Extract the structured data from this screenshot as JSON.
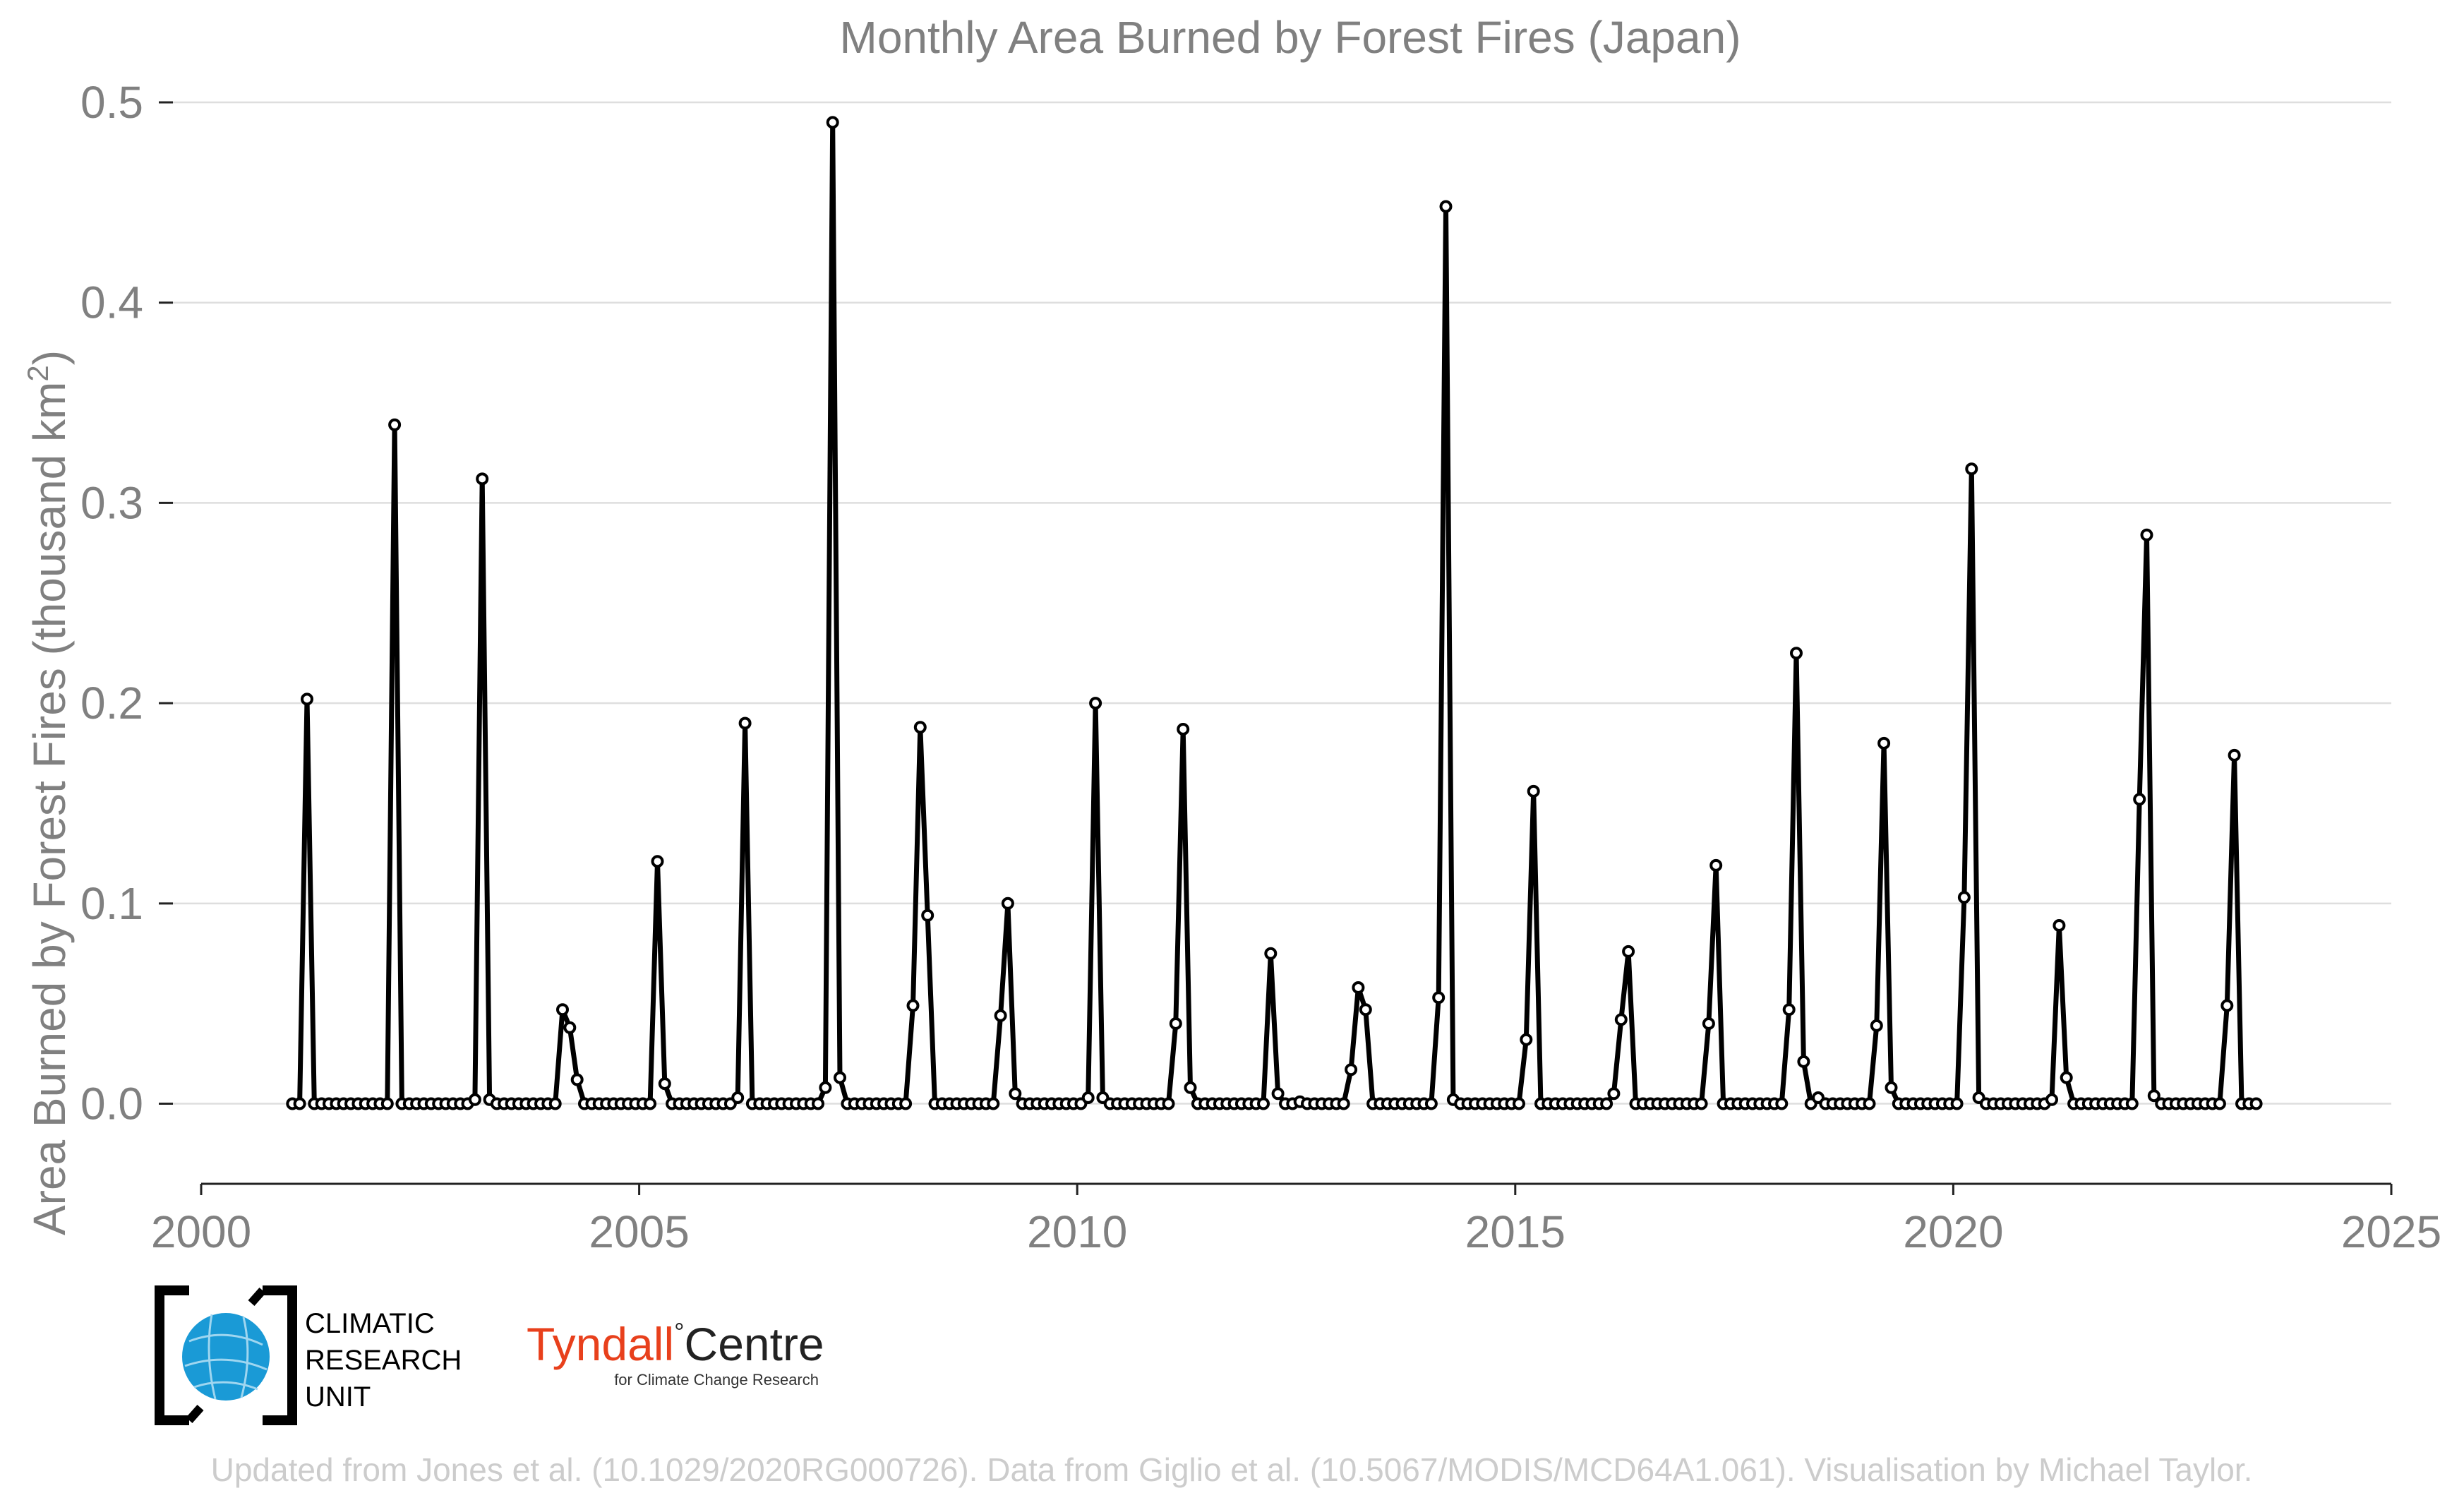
{
  "chart_data": {
    "type": "line",
    "title": "Monthly Area Burned by Forest Fires (Japan)",
    "ylabel": "Area Burned by Forest Fires (thousand km",
    "ylabel_superscript": "2",
    "ylabel_close": ")",
    "xlabel": "",
    "xlim": [
      2000,
      2025
    ],
    "ylim": [
      -0.04,
      0.5
    ],
    "x_ticks": [
      2000,
      2005,
      2010,
      2015,
      2020,
      2025
    ],
    "x_tick_labels": [
      "2000",
      "2005",
      "2010",
      "2015",
      "2020",
      "2025"
    ],
    "y_ticks": [
      0.0,
      0.1,
      0.2,
      0.3,
      0.4,
      0.5
    ],
    "y_tick_labels": [
      "0.0",
      "0.1",
      "0.2",
      "0.3",
      "0.4",
      "0.5"
    ],
    "grid": "horizontal",
    "start": "2001-01",
    "end": "2023-06",
    "frequency": "monthly",
    "series": [
      {
        "values": [
          0.0,
          0.0,
          0.202,
          0.0,
          0.0,
          0.0,
          0.0,
          0.0,
          0.0,
          0.0,
          0.0,
          0.0,
          0.0,
          0.0,
          0.339,
          0.0,
          0.0,
          0.0,
          0.0,
          0.0,
          0.0,
          0.0,
          0.0,
          0.0,
          0.0,
          0.002,
          0.312,
          0.002,
          0.0,
          0.0,
          0.0,
          0.0,
          0.0,
          0.0,
          0.0,
          0.0,
          0.0,
          0.047,
          0.038,
          0.012,
          0.0,
          0.0,
          0.0,
          0.0,
          0.0,
          0.0,
          0.0,
          0.0,
          0.0,
          0.0,
          0.121,
          0.01,
          0.0,
          0.0,
          0.0,
          0.0,
          0.0,
          0.0,
          0.0,
          0.0,
          0.0,
          0.003,
          0.19,
          0.0,
          0.0,
          0.0,
          0.0,
          0.0,
          0.0,
          0.0,
          0.0,
          0.0,
          0.0,
          0.008,
          0.49,
          0.013,
          0.0,
          0.0,
          0.0,
          0.0,
          0.0,
          0.0,
          0.0,
          0.0,
          0.0,
          0.049,
          0.188,
          0.094,
          0.0,
          0.0,
          0.0,
          0.0,
          0.0,
          0.0,
          0.0,
          0.0,
          0.0,
          0.044,
          0.1,
          0.005,
          0.0,
          0.0,
          0.0,
          0.0,
          0.0,
          0.0,
          0.0,
          0.0,
          0.0,
          0.003,
          0.2,
          0.003,
          0.0,
          0.0,
          0.0,
          0.0,
          0.0,
          0.0,
          0.0,
          0.0,
          0.0,
          0.04,
          0.187,
          0.008,
          0.0,
          0.0,
          0.0,
          0.0,
          0.0,
          0.0,
          0.0,
          0.0,
          0.0,
          0.0,
          0.075,
          0.005,
          0.0,
          0.0,
          0.001,
          0.0,
          0.0,
          0.0,
          0.0,
          0.0,
          0.0,
          0.017,
          0.058,
          0.047,
          0.0,
          0.0,
          0.0,
          0.0,
          0.0,
          0.0,
          0.0,
          0.0,
          0.0,
          0.053,
          0.448,
          0.002,
          0.0,
          0.0,
          0.0,
          0.0,
          0.0,
          0.0,
          0.0,
          0.0,
          0.0,
          0.032,
          0.156,
          0.0,
          0.0,
          0.0,
          0.0,
          0.0,
          0.0,
          0.0,
          0.0,
          0.0,
          0.0,
          0.005,
          0.042,
          0.076,
          0.0,
          0.0,
          0.0,
          0.0,
          0.0,
          0.0,
          0.0,
          0.0,
          0.0,
          0.0,
          0.04,
          0.119,
          0.0,
          0.0,
          0.0,
          0.0,
          0.0,
          0.0,
          0.0,
          0.0,
          0.0,
          0.047,
          0.225,
          0.021,
          0.0,
          0.003,
          0.0,
          0.0,
          0.0,
          0.0,
          0.0,
          0.0,
          0.0,
          0.039,
          0.18,
          0.008,
          0.0,
          0.0,
          0.0,
          0.0,
          0.0,
          0.0,
          0.0,
          0.0,
          0.0,
          0.103,
          0.317,
          0.003,
          0.0,
          0.0,
          0.0,
          0.0,
          0.0,
          0.0,
          0.0,
          0.0,
          0.0,
          0.002,
          0.089,
          0.013,
          0.0,
          0.0,
          0.0,
          0.0,
          0.0,
          0.0,
          0.0,
          0.0,
          0.0,
          0.152,
          0.284,
          0.004,
          0.0,
          0.0,
          0.0,
          0.0,
          0.0,
          0.0,
          0.0,
          0.0,
          0.0,
          0.049,
          0.174,
          0.0,
          0.0,
          0.0
        ]
      }
    ]
  },
  "logos": {
    "cru": {
      "line1": "CLIMATIC",
      "line2": "RESEARCH",
      "line3": "UNIT",
      "icon": "globe-icon",
      "color": "#1a9ad6"
    },
    "tyndall": {
      "name_a": "Tyndall",
      "degree": "°",
      "name_b": "Centre",
      "subtitle": "for Climate Change Research",
      "accent_color": "#e8401c"
    }
  },
  "credit": "Updated from Jones et al. (10.1029/2020RG000726). Data from Giglio et al. (10.5067/MODIS/MCD64A1.061). Visualisation by Michael Taylor."
}
